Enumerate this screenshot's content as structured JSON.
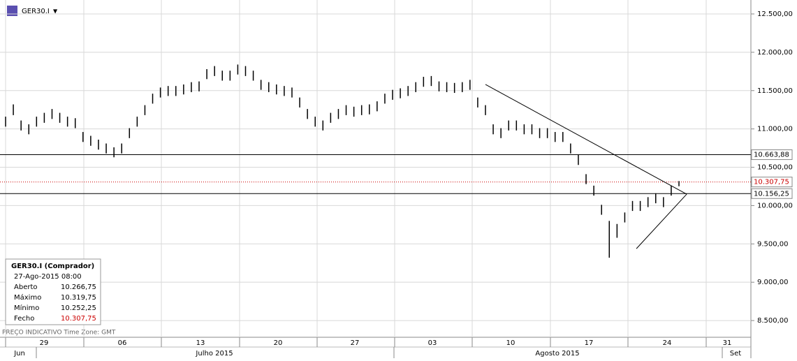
{
  "chart_data": {
    "type": "ohlc",
    "symbol": "GER30.I",
    "color": "#000000",
    "ylim": [
      8282,
      12682
    ],
    "yticks": [
      {
        "value": 8500,
        "label": "8.500,00"
      },
      {
        "value": 9000,
        "label": "9.000,00"
      },
      {
        "value": 9500,
        "label": "9.500,00"
      },
      {
        "value": 10000,
        "label": "10.000,00"
      },
      {
        "value": 10500,
        "label": "10.500,00"
      },
      {
        "value": 11000,
        "label": "11.000,00"
      },
      {
        "value": 11500,
        "label": "11.500,00"
      },
      {
        "value": 12000,
        "label": "12.000,00"
      },
      {
        "value": 12500,
        "label": "12.500,00"
      }
    ],
    "grid": true,
    "x_labels": [
      "29",
      "06",
      "13",
      "20",
      "27",
      "03",
      "10",
      "17",
      "24",
      "31"
    ],
    "month_labels": [
      "Jun",
      "Julho 2015",
      "Agosto 2015",
      "Set"
    ],
    "high": [
      11160,
      11320,
      11110,
      11060,
      11160,
      11210,
      11260,
      11210,
      11160,
      11140,
      10960,
      10910,
      10860,
      10810,
      10760,
      10810,
      11010,
      11160,
      11310,
      11460,
      11540,
      11560,
      11560,
      11580,
      11610,
      11620,
      11780,
      11820,
      11760,
      11760,
      11840,
      11820,
      11760,
      11640,
      11610,
      11580,
      11560,
      11540,
      11410,
      11260,
      11160,
      11110,
      11210,
      11260,
      11310,
      11290,
      11310,
      11320,
      11360,
      11460,
      11510,
      11530,
      11560,
      11610,
      11680,
      11690,
      11620,
      11610,
      11600,
      11610,
      11640,
      11410,
      11310,
      11060,
      11010,
      11110,
      11110,
      11060,
      11060,
      11010,
      11010,
      10960,
      10960,
      10810,
      10660,
      10410,
      10260,
      10010,
      9800,
      9760,
      9910,
      10060,
      10060,
      10110,
      10160,
      10110,
      10260,
      10319.75
    ],
    "low": [
      11030,
      11180,
      10980,
      10930,
      11030,
      11080,
      11130,
      11080,
      11030,
      11010,
      10830,
      10780,
      10730,
      10680,
      10630,
      10680,
      10880,
      11030,
      11180,
      11330,
      11410,
      11430,
      11430,
      11450,
      11480,
      11490,
      11650,
      11690,
      11630,
      11630,
      11710,
      11690,
      11630,
      11510,
      11480,
      11450,
      11430,
      11410,
      11280,
      11130,
      11030,
      10980,
      11080,
      11130,
      11180,
      11160,
      11180,
      11190,
      11230,
      11330,
      11380,
      11400,
      11430,
      11480,
      11550,
      11560,
      11490,
      11480,
      11470,
      11480,
      11510,
      11280,
      11180,
      10930,
      10880,
      10980,
      10980,
      10930,
      10930,
      10880,
      10880,
      10830,
      10830,
      10680,
      10530,
      10280,
      10130,
      9880,
      9320,
      9580,
      9780,
      9930,
      9930,
      9980,
      10030,
      9980,
      10130,
      10252.25
    ],
    "levels": [
      {
        "value": 10663.88,
        "label": "10.663,88",
        "color": "#000000",
        "style": "solid"
      },
      {
        "value": 10307.75,
        "label": "10.307,75",
        "color": "#cc0000",
        "style": "dotted"
      },
      {
        "value": 10156.25,
        "label": "10.156,25",
        "color": "#000000",
        "style": "solid"
      }
    ],
    "trendlines": [
      {
        "x": [
          62,
          88
        ],
        "y": [
          11580,
          10149
        ]
      },
      {
        "x": [
          81.5,
          88
        ],
        "y": [
          9438,
          10149
        ]
      }
    ],
    "info": {
      "title": "GER30.I (Comprador)",
      "date": "27-Ago-2015 08:00",
      "rows": [
        [
          "Aberto",
          "10.266,75"
        ],
        [
          "Máximo",
          "10.319,75"
        ],
        [
          "Mínimo",
          "10.252,25"
        ],
        [
          "Fecho",
          "10.307,75"
        ]
      ]
    },
    "footer": "PREÇO INDICATIVO   Time Zone: GMT"
  }
}
